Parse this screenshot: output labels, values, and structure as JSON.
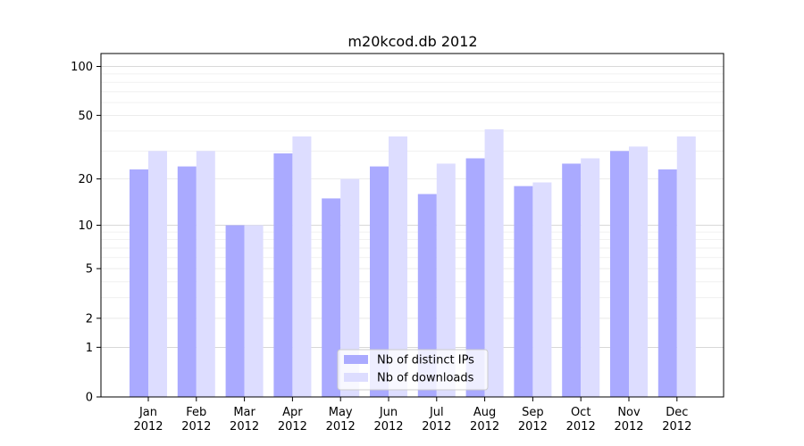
{
  "chart_data": {
    "type": "bar",
    "title": "m20kcod.db 2012",
    "xlabel": "",
    "ylabel": "",
    "y_scale": "log(1+y)",
    "ylim": [
      0,
      120
    ],
    "yticks": [
      0,
      1,
      2,
      5,
      10,
      20,
      50,
      100
    ],
    "grid": true,
    "legend_position": "bottom-center",
    "categories": [
      {
        "month": "Jan",
        "year": "2012"
      },
      {
        "month": "Feb",
        "year": "2012"
      },
      {
        "month": "Mar",
        "year": "2012"
      },
      {
        "month": "Apr",
        "year": "2012"
      },
      {
        "month": "May",
        "year": "2012"
      },
      {
        "month": "Jun",
        "year": "2012"
      },
      {
        "month": "Jul",
        "year": "2012"
      },
      {
        "month": "Aug",
        "year": "2012"
      },
      {
        "month": "Sep",
        "year": "2012"
      },
      {
        "month": "Oct",
        "year": "2012"
      },
      {
        "month": "Nov",
        "year": "2012"
      },
      {
        "month": "Dec",
        "year": "2012"
      }
    ],
    "series": [
      {
        "name": "Nb of distinct IPs",
        "color": "#aaaaff",
        "values": [
          23,
          24,
          10,
          29,
          15,
          24,
          16,
          27,
          18,
          25,
          30,
          23
        ]
      },
      {
        "name": "Nb of downloads",
        "color": "#ddddff",
        "values": [
          30,
          30,
          10,
          37,
          20,
          37,
          25,
          41,
          19,
          27,
          32,
          37
        ]
      }
    ]
  }
}
